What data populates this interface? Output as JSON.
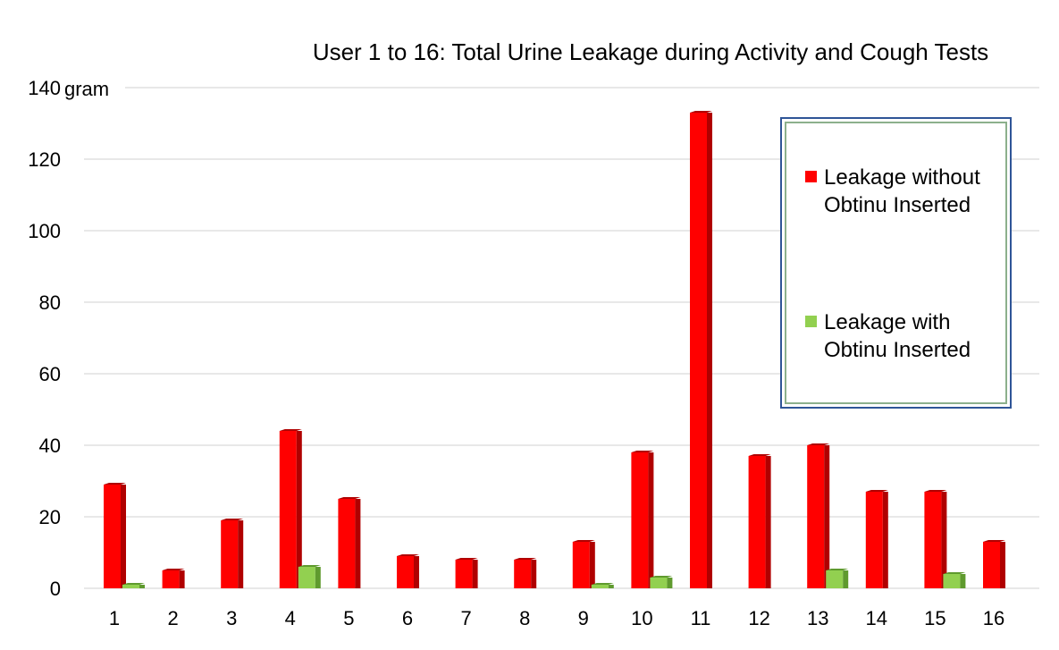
{
  "chart_data": {
    "type": "bar",
    "title": "User 1 to 16: Total Urine Leakage during Activity and Cough Tests",
    "ylabel": "gram",
    "xlabel": "",
    "ylim": [
      0,
      140
    ],
    "yticks": [
      0,
      20,
      40,
      60,
      80,
      100,
      120,
      140
    ],
    "grid": true,
    "legend_position": "top-right",
    "categories": [
      "1",
      "2",
      "3",
      "4",
      "5",
      "6",
      "7",
      "8",
      "9",
      "10",
      "11",
      "12",
      "13",
      "14",
      "15",
      "16"
    ],
    "series": [
      {
        "name": "Leakage without Obtinu Inserted",
        "color": "#ff0000",
        "values": [
          29,
          5,
          19,
          44,
          25,
          9,
          8,
          8,
          13,
          38,
          133,
          37,
          40,
          27,
          27,
          13
        ]
      },
      {
        "name": "Leakage with Obtinu Inserted",
        "color": "#92d050",
        "values": [
          1,
          0,
          0,
          6,
          0,
          0,
          0,
          0,
          1,
          3,
          0,
          0,
          5,
          0,
          4,
          0
        ]
      }
    ]
  },
  "legend": {
    "item1_line1": "Leakage without",
    "item1_line2": "Obtinu Inserted",
    "item2_line1": "Leakage with",
    "item2_line2": "Obtinu Inserted"
  }
}
